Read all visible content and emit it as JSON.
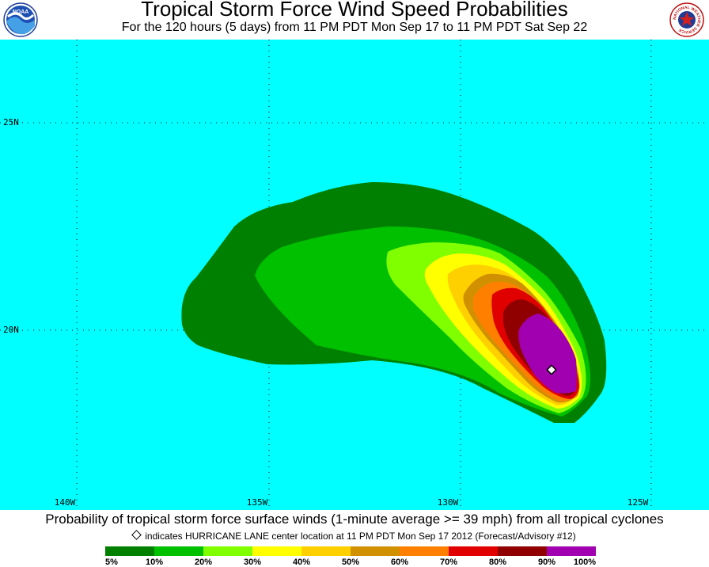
{
  "header": {
    "title": "Tropical Storm Force Wind Speed Probabilities",
    "subtitle": "For the 120 hours (5 days) from 11 PM PDT Mon Sep 17 to 11 PM PDT Sat Sep 22",
    "left_logo": "NOAA",
    "right_logo": "NATIONAL WEATHER SERVICE"
  },
  "map": {
    "ocean_color": "#00ffff",
    "lat_labels": [
      "25N",
      "20N"
    ],
    "lon_labels": [
      "140W",
      "135W",
      "130W",
      "125W"
    ],
    "storm_center_marker": "diamond-icon"
  },
  "footer": {
    "caption": "Probability of tropical storm force surface winds (1-minute average >= 39 mph) from all tropical cyclones",
    "center_note": "indicates HURRICANE LANE center location at 11 PM PDT Mon Sep 17 2012 (Forecast/Advisory #12)"
  },
  "legend": {
    "colors": [
      "#008000",
      "#00c000",
      "#80ff00",
      "#ffff00",
      "#ffd000",
      "#d09000",
      "#ff8000",
      "#e00000",
      "#900000",
      "#a000b0"
    ],
    "labels": [
      "5%",
      "10%",
      "20%",
      "30%",
      "40%",
      "50%",
      "60%",
      "70%",
      "80%",
      "90%",
      "100%"
    ]
  }
}
